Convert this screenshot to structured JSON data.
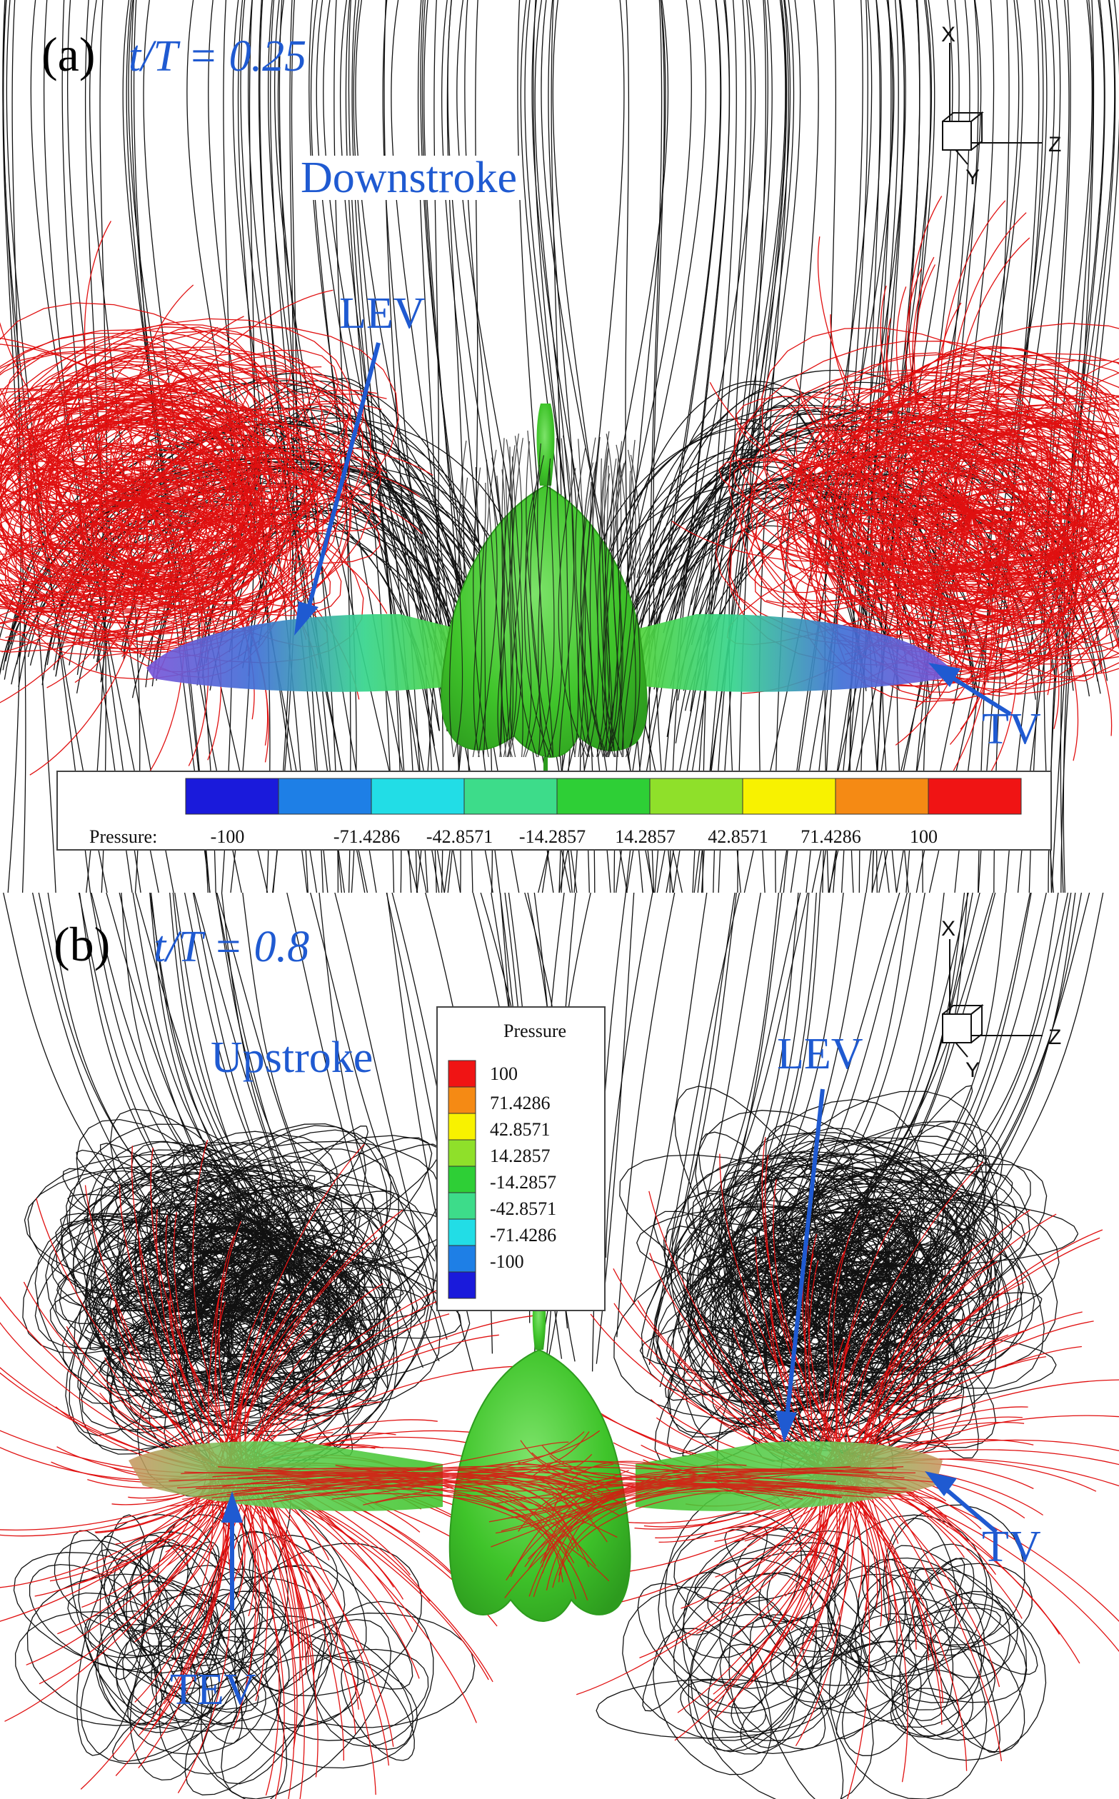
{
  "panel_a": {
    "label": "(a)",
    "time": "t/T = 0.25",
    "phase": "Downstroke",
    "annotations": {
      "lev": "LEV",
      "tv": "TV"
    },
    "legend": {
      "title": "Pressure:",
      "ticks": [
        "-100",
        "-71.4286",
        "-42.8571",
        "-14.2857",
        "14.2857",
        "42.8571",
        "71.4286",
        "100"
      ],
      "colors": [
        "#1a1adb",
        "#1e7fe6",
        "#22dde6",
        "#3ddc8a",
        "#2ecf36",
        "#8fe02a",
        "#f8f200",
        "#f58a14",
        "#f01414"
      ]
    },
    "axes": {
      "x": "X",
      "y": "Y",
      "z": "Z"
    }
  },
  "panel_b": {
    "label": "(b)",
    "time": "t/T = 0.8",
    "phase": "Upstroke",
    "annotations": {
      "lev": "LEV",
      "tv": "TV",
      "tev": "TEV"
    },
    "legend": {
      "title": "Pressure",
      "ticks": [
        "100",
        "71.4286",
        "42.8571",
        "14.2857",
        "-14.2857",
        "-42.8571",
        "-71.4286",
        "-100"
      ],
      "colors": [
        "#f01414",
        "#f58a14",
        "#f8f200",
        "#8fe02a",
        "#2ecf36",
        "#3ddc8a",
        "#22dde6",
        "#1e7fe6",
        "#1a1adb"
      ]
    },
    "axes": {
      "x": "X",
      "y": "Y",
      "z": "Z"
    }
  },
  "colors": {
    "annotation": "#1f5ad1",
    "body": "#4fd33a",
    "streamline_a": "#e01010",
    "streamline_b": "#111111"
  }
}
